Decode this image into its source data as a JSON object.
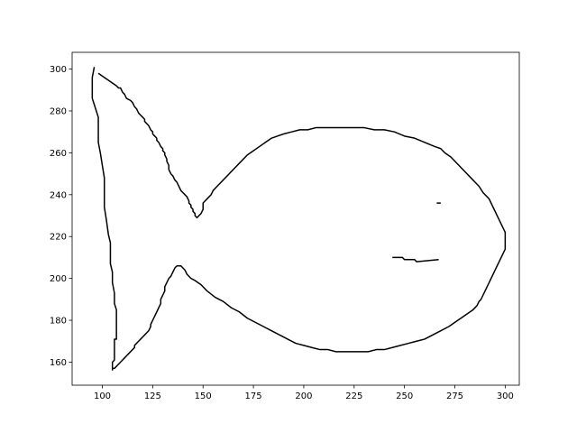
{
  "chart_data": {
    "type": "line",
    "title": "",
    "xlabel": "",
    "ylabel": "",
    "xlim": [
      85,
      307
    ],
    "ylim": [
      149,
      308
    ],
    "grid": false,
    "legend": "none",
    "line_color": "#000000",
    "x_ticks": [
      100,
      125,
      150,
      175,
      200,
      225,
      250,
      275,
      300
    ],
    "y_ticks": [
      160,
      180,
      200,
      220,
      240,
      260,
      280,
      300
    ],
    "series": [
      {
        "points": [
          [
            96,
            301
          ],
          [
            95,
            296
          ],
          [
            95,
            290
          ],
          [
            95,
            286
          ],
          [
            96,
            283
          ],
          [
            97,
            280
          ],
          [
            98,
            277
          ],
          [
            98,
            272
          ],
          [
            98,
            265
          ],
          [
            99,
            260
          ],
          [
            100,
            254
          ],
          [
            101,
            248
          ],
          [
            101,
            242
          ],
          [
            101,
            234
          ],
          [
            102,
            228
          ],
          [
            103,
            221
          ],
          [
            104,
            217
          ],
          [
            104,
            213
          ],
          [
            104,
            207
          ],
          [
            105,
            203
          ],
          [
            105,
            198
          ],
          [
            106,
            193
          ],
          [
            106,
            188
          ],
          [
            107,
            185
          ],
          [
            107,
            180
          ],
          [
            107,
            176
          ],
          [
            107,
            171
          ],
          [
            106,
            171
          ],
          [
            106,
            165
          ],
          [
            106,
            161
          ],
          [
            105,
            160
          ],
          [
            105,
            158
          ],
          [
            105,
            156
          ]
        ]
      },
      {
        "points": [
          [
            98,
            298
          ],
          [
            101,
            296
          ],
          [
            104,
            294
          ],
          [
            107,
            292
          ],
          [
            108,
            291
          ],
          [
            109,
            291
          ],
          [
            110,
            289
          ],
          [
            111,
            288
          ],
          [
            112,
            286
          ],
          [
            114,
            285
          ],
          [
            115,
            284
          ],
          [
            116,
            282
          ],
          [
            117,
            281
          ],
          [
            118,
            279
          ],
          [
            119,
            278
          ],
          [
            120,
            277
          ],
          [
            121,
            276
          ],
          [
            121,
            275
          ],
          [
            122,
            274
          ],
          [
            123,
            273
          ],
          [
            124,
            271
          ],
          [
            125,
            270
          ],
          [
            125,
            269
          ],
          [
            126,
            268
          ],
          [
            127,
            267
          ],
          [
            127,
            266
          ],
          [
            128,
            265
          ],
          [
            129,
            263
          ],
          [
            130,
            262
          ],
          [
            130,
            261
          ],
          [
            131,
            260
          ],
          [
            131,
            259
          ],
          [
            132,
            257
          ],
          [
            132,
            256
          ],
          [
            133,
            254
          ],
          [
            133,
            252
          ],
          [
            134,
            250
          ],
          [
            135,
            249
          ],
          [
            136,
            247
          ],
          [
            137,
            246
          ],
          [
            138,
            244
          ],
          [
            139,
            242
          ],
          [
            140,
            241
          ],
          [
            141,
            240
          ],
          [
            142,
            239
          ],
          [
            143,
            237
          ],
          [
            143,
            236
          ],
          [
            144,
            235
          ],
          [
            144,
            234
          ],
          [
            145,
            233
          ],
          [
            145,
            232
          ],
          [
            146,
            231
          ],
          [
            146,
            230
          ],
          [
            147,
            229
          ],
          [
            148,
            230
          ],
          [
            149,
            231
          ],
          [
            150,
            233
          ],
          [
            150,
            234
          ],
          [
            150,
            236
          ],
          [
            151,
            237
          ],
          [
            152,
            238
          ],
          [
            154,
            240
          ],
          [
            155,
            242
          ],
          [
            157,
            244
          ],
          [
            160,
            247
          ],
          [
            163,
            250
          ],
          [
            166,
            253
          ],
          [
            169,
            256
          ],
          [
            172,
            259
          ],
          [
            175,
            261
          ],
          [
            178,
            263
          ],
          [
            181,
            265
          ],
          [
            184,
            267
          ],
          [
            187,
            268
          ],
          [
            190,
            269
          ],
          [
            194,
            270
          ],
          [
            198,
            271
          ],
          [
            202,
            271
          ],
          [
            206,
            272
          ],
          [
            220,
            272
          ],
          [
            230,
            272
          ],
          [
            235,
            271
          ],
          [
            240,
            271
          ],
          [
            245,
            270
          ],
          [
            250,
            268
          ],
          [
            255,
            267
          ],
          [
            260,
            265
          ],
          [
            265,
            263
          ],
          [
            268,
            262
          ],
          [
            270,
            260
          ],
          [
            273,
            258
          ],
          [
            276,
            255
          ],
          [
            280,
            251
          ],
          [
            284,
            247
          ],
          [
            287,
            244
          ],
          [
            289,
            241
          ],
          [
            292,
            238
          ],
          [
            294,
            234
          ],
          [
            295,
            232
          ],
          [
            296,
            230
          ],
          [
            297,
            228
          ],
          [
            298,
            226
          ],
          [
            299,
            224
          ],
          [
            300,
            222
          ],
          [
            300,
            220
          ],
          [
            300,
            218
          ],
          [
            300,
            216
          ],
          [
            300,
            214
          ],
          [
            299,
            212
          ],
          [
            298,
            210
          ],
          [
            297,
            208
          ],
          [
            296,
            206
          ],
          [
            295,
            204
          ],
          [
            294,
            202
          ],
          [
            293,
            200
          ],
          [
            292,
            198
          ],
          [
            291,
            196
          ],
          [
            290,
            194
          ],
          [
            289,
            192
          ],
          [
            288,
            190
          ],
          [
            287,
            189
          ],
          [
            286,
            187
          ],
          [
            284,
            185
          ],
          [
            281,
            183
          ],
          [
            278,
            181
          ],
          [
            275,
            179
          ],
          [
            272,
            177
          ],
          [
            268,
            175
          ],
          [
            264,
            173
          ],
          [
            260,
            171
          ],
          [
            256,
            170
          ],
          [
            252,
            169
          ],
          [
            248,
            168
          ],
          [
            244,
            167
          ],
          [
            240,
            166
          ],
          [
            236,
            166
          ],
          [
            232,
            165
          ],
          [
            226,
            165
          ],
          [
            220,
            165
          ],
          [
            216,
            165
          ],
          [
            212,
            166
          ],
          [
            208,
            166
          ],
          [
            204,
            167
          ],
          [
            200,
            168
          ],
          [
            196,
            169
          ],
          [
            192,
            171
          ],
          [
            188,
            173
          ],
          [
            184,
            175
          ],
          [
            180,
            177
          ],
          [
            176,
            179
          ],
          [
            172,
            181
          ],
          [
            168,
            184
          ],
          [
            164,
            186
          ],
          [
            160,
            189
          ],
          [
            156,
            191
          ],
          [
            152,
            194
          ],
          [
            149,
            197
          ],
          [
            146,
            199
          ],
          [
            144,
            200
          ],
          [
            142,
            202
          ],
          [
            141,
            204
          ],
          [
            140,
            205
          ],
          [
            139,
            206
          ],
          [
            138,
            206
          ],
          [
            137,
            206
          ],
          [
            136,
            205
          ],
          [
            135,
            203
          ],
          [
            134,
            201
          ],
          [
            133,
            200
          ],
          [
            132,
            198
          ],
          [
            131,
            196
          ],
          [
            131,
            194
          ],
          [
            130,
            192
          ],
          [
            129,
            190
          ],
          [
            129,
            188
          ],
          [
            128,
            186
          ],
          [
            127,
            184
          ],
          [
            126,
            182
          ],
          [
            125,
            180
          ],
          [
            124,
            178
          ],
          [
            124,
            177
          ],
          [
            123,
            175
          ],
          [
            122,
            174
          ],
          [
            121,
            173
          ],
          [
            120,
            172
          ],
          [
            119,
            171
          ],
          [
            118,
            170
          ],
          [
            117,
            169
          ],
          [
            116,
            168
          ],
          [
            116,
            167
          ],
          [
            115,
            166
          ],
          [
            114,
            165
          ],
          [
            113,
            164
          ],
          [
            112,
            163
          ],
          [
            111,
            162
          ],
          [
            110,
            161
          ],
          [
            109,
            160
          ],
          [
            108,
            159
          ],
          [
            107,
            158
          ],
          [
            106,
            157
          ],
          [
            105,
            157
          ]
        ]
      },
      {
        "points": [
          [
            266,
            236
          ],
          [
            268,
            236
          ]
        ]
      },
      {
        "points": [
          [
            244,
            210
          ],
          [
            249,
            210
          ],
          [
            250,
            209
          ],
          [
            255,
            209
          ],
          [
            256,
            208
          ],
          [
            267,
            209
          ]
        ]
      }
    ]
  }
}
